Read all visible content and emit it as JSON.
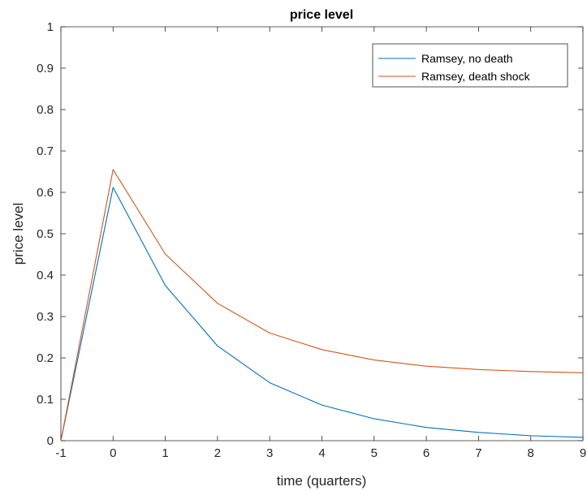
{
  "chart_data": {
    "type": "line",
    "title": "price level",
    "xlabel": "time (quarters)",
    "ylabel": "price level",
    "xlim": [
      -1,
      9
    ],
    "ylim": [
      0,
      1
    ],
    "x_ticks": [
      -1,
      0,
      1,
      2,
      3,
      4,
      5,
      6,
      7,
      8,
      9
    ],
    "y_ticks": [
      0,
      0.1,
      0.2,
      0.3,
      0.4,
      0.5,
      0.6,
      0.7,
      0.8,
      0.9,
      1
    ],
    "x": [
      -1,
      0,
      1,
      2,
      3,
      4,
      5,
      6,
      7,
      8,
      9
    ],
    "series": [
      {
        "name": "Ramsey, no death",
        "color": "#0072BD",
        "values": [
          0,
          0.612,
          0.375,
          0.229,
          0.14,
          0.086,
          0.053,
          0.032,
          0.02,
          0.012,
          0.008
        ]
      },
      {
        "name": "Ramsey, death shock",
        "color": "#D95319",
        "values": [
          0,
          0.655,
          0.451,
          0.332,
          0.26,
          0.22,
          0.195,
          0.18,
          0.172,
          0.167,
          0.164
        ]
      }
    ],
    "grid": false,
    "legend_position": "top-right"
  }
}
